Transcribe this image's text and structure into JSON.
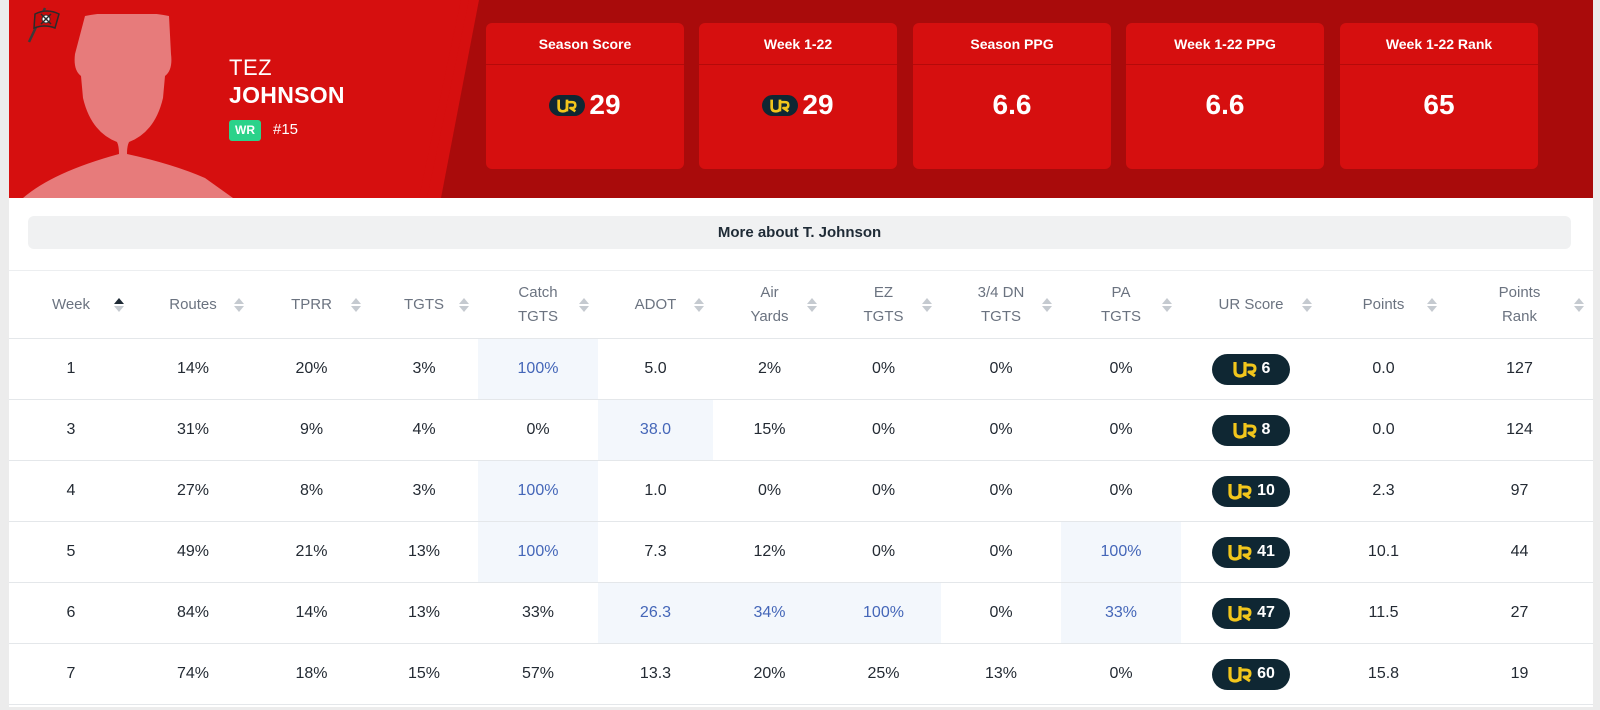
{
  "player": {
    "first_name": "TEZ",
    "last_name": "JOHNSON",
    "position": "WR",
    "number": "#15"
  },
  "colors": {
    "primary_red": "#d60f0f",
    "dark_red": "#a90b0b",
    "ur_badge": "#0f2733",
    "ur_logo": "#f2c61c",
    "position_badge": "#2bd28a",
    "highlight_text": "#4466b8",
    "highlight_bg": "#f3f7fc"
  },
  "stat_cards": [
    {
      "label": "Season Score",
      "value": "29",
      "ur_icon": true
    },
    {
      "label": "Week 1-22",
      "value": "29",
      "ur_icon": true
    },
    {
      "label": "Season PPG",
      "value": "6.6",
      "ur_icon": false
    },
    {
      "label": "Week 1-22 PPG",
      "value": "6.6",
      "ur_icon": false
    },
    {
      "label": "Week 1-22 Rank",
      "value": "65",
      "ur_icon": false
    }
  ],
  "more_button": {
    "label": "More about T. Johnson"
  },
  "table": {
    "sorted_column": "Week",
    "sort_direction": "ascending",
    "headers": [
      "Week",
      "Routes",
      "TPRR",
      "TGTS",
      "Catch\nTGTS",
      "ADOT",
      "Air\nYards",
      "EZ\nTGTS",
      "3/4 DN\nTGTS",
      "PA\nTGTS",
      "UR Score",
      "Points",
      "Points\nRank"
    ],
    "rows": [
      {
        "cells": [
          "1",
          "14%",
          "20%",
          "3%",
          "100%",
          "5.0",
          "2%",
          "0%",
          "0%",
          "0%",
          "6",
          "0.0",
          "127"
        ],
        "highlight": [
          4
        ]
      },
      {
        "cells": [
          "3",
          "31%",
          "9%",
          "4%",
          "0%",
          "38.0",
          "15%",
          "0%",
          "0%",
          "0%",
          "8",
          "0.0",
          "124"
        ],
        "highlight": [
          5
        ]
      },
      {
        "cells": [
          "4",
          "27%",
          "8%",
          "3%",
          "100%",
          "1.0",
          "0%",
          "0%",
          "0%",
          "0%",
          "10",
          "2.3",
          "97"
        ],
        "highlight": [
          4
        ]
      },
      {
        "cells": [
          "5",
          "49%",
          "21%",
          "13%",
          "100%",
          "7.3",
          "12%",
          "0%",
          "0%",
          "100%",
          "41",
          "10.1",
          "44"
        ],
        "highlight": [
          4,
          9
        ]
      },
      {
        "cells": [
          "6",
          "84%",
          "14%",
          "13%",
          "33%",
          "26.3",
          "34%",
          "100%",
          "0%",
          "33%",
          "47",
          "11.5",
          "27"
        ],
        "highlight": [
          5,
          6,
          7,
          9
        ]
      },
      {
        "cells": [
          "7",
          "74%",
          "18%",
          "15%",
          "57%",
          "13.3",
          "20%",
          "25%",
          "13%",
          "0%",
          "60",
          "15.8",
          "19"
        ],
        "highlight": []
      }
    ]
  }
}
